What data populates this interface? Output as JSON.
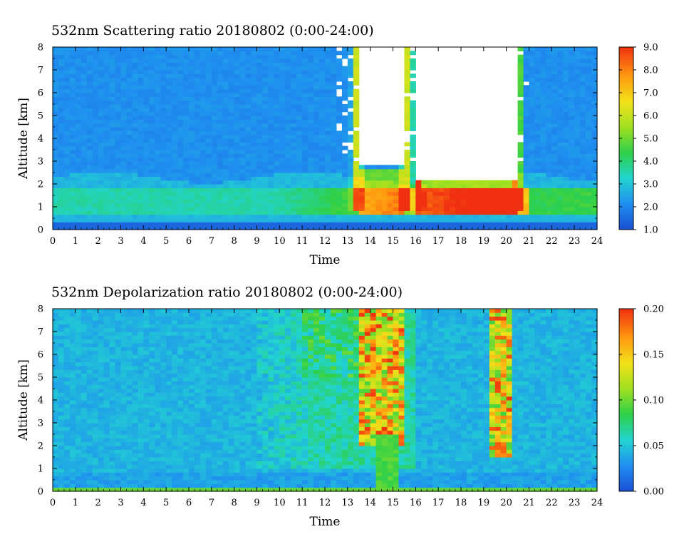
{
  "chart_data": [
    {
      "type": "heatmap",
      "title": "532nm Scattering ratio  20180802 (0:00-24:00)",
      "xlabel": "Time",
      "ylabel": "Altitude [km]",
      "xlim": [
        0,
        24
      ],
      "ylim": [
        0,
        8
      ],
      "x_ticks": [
        "0",
        "1",
        "2",
        "3",
        "4",
        "5",
        "6",
        "7",
        "8",
        "9",
        "10",
        "11",
        "12",
        "13",
        "14",
        "15",
        "16",
        "17",
        "18",
        "19",
        "20",
        "21",
        "22",
        "23",
        "24"
      ],
      "y_ticks": [
        "0",
        "1",
        "2",
        "3",
        "4",
        "5",
        "6",
        "7",
        "8"
      ],
      "colorbar": {
        "min": 1.0,
        "max": 9.0,
        "tick_labels": [
          "1.0",
          "2.0",
          "3.0",
          "4.0",
          "5.0",
          "6.0",
          "7.0",
          "8.0",
          "9.0"
        ]
      },
      "colors": [
        "#1a4fd6",
        "#1f8ff0",
        "#22d4d0",
        "#2ed04a",
        "#9fe020",
        "#f2e21a",
        "#ff9a10",
        "#f03010"
      ],
      "features": {
        "boundary_layer_top_km": 2.3,
        "enhanced_layer_km": [
          1.0,
          2.0
        ],
        "cloud_saturated_time_ranges": [
          [
            13.4,
            15.6
          ],
          [
            16.1,
            20.5
          ]
        ],
        "cloud_base_km": 1.5
      }
    },
    {
      "type": "heatmap",
      "title": "532nm Depolarization ratio  20180802 (0:00-24:00)",
      "xlabel": "Time",
      "ylabel": "Altitude [km]",
      "xlim": [
        0,
        24
      ],
      "ylim": [
        0,
        8
      ],
      "x_ticks": [
        "0",
        "1",
        "2",
        "3",
        "4",
        "5",
        "6",
        "7",
        "8",
        "9",
        "10",
        "11",
        "12",
        "13",
        "14",
        "15",
        "16",
        "17",
        "18",
        "19",
        "20",
        "21",
        "22",
        "23",
        "24"
      ],
      "y_ticks": [
        "0",
        "1",
        "2",
        "3",
        "4",
        "5",
        "6",
        "7",
        "8"
      ],
      "colorbar": {
        "min": 0.0,
        "max": 0.2,
        "tick_labels": [
          "0.00",
          "0.05",
          "0.10",
          "0.15",
          "0.20"
        ]
      },
      "colors": [
        "#1a4fd6",
        "#1f8ff0",
        "#22d4d0",
        "#2ed04a",
        "#9fe020",
        "#f2e21a",
        "#ff9a10",
        "#f03010"
      ],
      "features": {
        "high_depol_columns": [
          {
            "time_range": [
              13.6,
              15.4
            ],
            "altitude_km": [
              2.0,
              8.0
            ]
          },
          {
            "time_range": [
              19.3,
              20.3
            ],
            "altitude_km": [
              1.5,
              8.0
            ]
          }
        ],
        "surface_layer_km": [
          0.0,
          0.2
        ]
      }
    }
  ]
}
